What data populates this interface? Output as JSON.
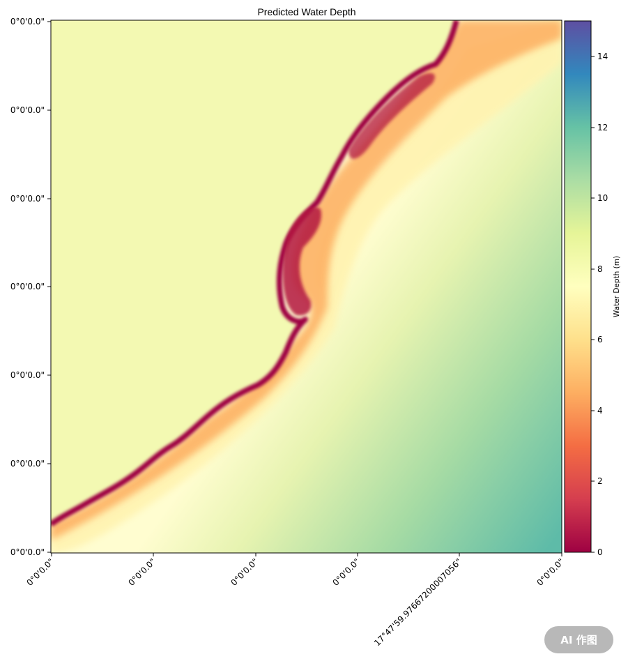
{
  "title": "Predicted Water Depth",
  "colorbar": {
    "label": "Water Depth (m)",
    "range": [
      0,
      15
    ],
    "ticks": [
      "0",
      "2",
      "4",
      "6",
      "8",
      "10",
      "12",
      "14"
    ],
    "colormap": "Spectral",
    "stops": [
      "#9e0142",
      "#d53e4f",
      "#f46d43",
      "#fdae61",
      "#fee08b",
      "#ffffbf",
      "#e6f598",
      "#abdda4",
      "#66c2a5",
      "#3288bd",
      "#5e4fa2"
    ]
  },
  "y_ticks": [
    "0°0'0.0\"",
    "0°0'0.0\"",
    "0°0'0.0\"",
    "0°0'0.0\"",
    "0°0'0.0\"",
    "0°0'0.0\"",
    "0°0'0.0\""
  ],
  "x_ticks": [
    "0°0'0.0\"",
    "0°0'0.0\"",
    "0°0'0.0\"",
    "0°0'0.0\"",
    "17°47'59.97667200007056\"",
    "0°0'0.0\""
  ],
  "colors": {
    "land": "#f3f9b2",
    "shallow": "#9e0142",
    "deep": "#5ebba8"
  },
  "badge": "AI 作图"
}
